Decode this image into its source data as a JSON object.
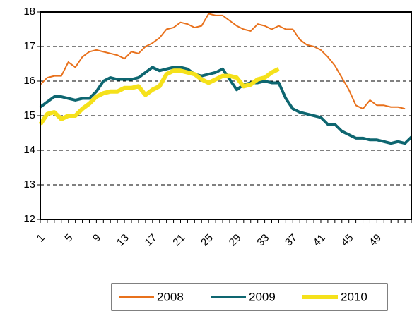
{
  "chart_data": {
    "type": "line",
    "categories": [
      "1",
      null,
      null,
      null,
      "5",
      null,
      null,
      null,
      "9",
      null,
      null,
      null,
      "13",
      null,
      null,
      null,
      "17",
      null,
      null,
      null,
      "21",
      null,
      null,
      null,
      "25",
      null,
      null,
      null,
      "29",
      null,
      null,
      null,
      "33",
      null,
      null,
      null,
      "37",
      null,
      null,
      null,
      "41",
      null,
      null,
      null,
      "45",
      null,
      null,
      null,
      "49",
      null,
      null,
      null,
      null,
      null
    ],
    "series": [
      {
        "name": "2008",
        "color": "#e8711c",
        "width": 2,
        "values": [
          15.9,
          16.1,
          16.15,
          16.15,
          16.55,
          16.4,
          16.7,
          16.85,
          16.9,
          16.85,
          16.8,
          16.75,
          16.65,
          16.85,
          16.8,
          17.0,
          17.1,
          17.25,
          17.5,
          17.55,
          17.7,
          17.65,
          17.55,
          17.6,
          17.95,
          17.9,
          17.9,
          17.75,
          17.6,
          17.5,
          17.45,
          17.65,
          17.6,
          17.5,
          17.6,
          17.5,
          17.5,
          17.2,
          17.05,
          17.0,
          16.9,
          16.7,
          16.45,
          16.1,
          15.75,
          15.3,
          15.2,
          15.45,
          15.3,
          15.3,
          15.25,
          15.25,
          15.2,
          null
        ]
      },
      {
        "name": "2009",
        "color": "#0e6670",
        "width": 4,
        "values": [
          15.25,
          15.4,
          15.55,
          15.55,
          15.5,
          15.45,
          15.5,
          15.5,
          15.7,
          16.0,
          16.1,
          16.05,
          16.05,
          16.05,
          16.1,
          16.25,
          16.4,
          16.3,
          16.35,
          16.4,
          16.4,
          16.35,
          16.2,
          16.15,
          16.2,
          16.25,
          16.35,
          16.05,
          15.75,
          15.9,
          15.95,
          15.95,
          16.0,
          15.95,
          15.95,
          15.5,
          15.2,
          15.1,
          15.05,
          15.0,
          14.95,
          14.75,
          14.75,
          14.55,
          14.45,
          14.35,
          14.35,
          14.3,
          14.3,
          14.25,
          14.2,
          14.25,
          14.2,
          14.4
        ]
      },
      {
        "name": "2010",
        "color": "#f5e11b",
        "width": 6,
        "values": [
          14.75,
          15.05,
          15.1,
          14.9,
          15.0,
          15.0,
          15.2,
          15.35,
          15.55,
          15.65,
          15.7,
          15.7,
          15.8,
          15.8,
          15.85,
          15.6,
          15.75,
          15.85,
          16.2,
          16.3,
          16.3,
          16.25,
          16.2,
          16.05,
          15.95,
          16.05,
          16.15,
          16.15,
          16.1,
          15.85,
          15.9,
          16.05,
          16.1,
          16.25,
          16.35,
          null,
          null,
          null,
          null,
          null,
          null,
          null,
          null,
          null,
          null,
          null,
          null,
          null,
          null,
          null,
          null,
          null,
          null,
          null
        ]
      }
    ],
    "ylim": [
      12,
      18
    ],
    "yticks": [
      12,
      13,
      14,
      15,
      16,
      17,
      18
    ],
    "grid": true
  }
}
